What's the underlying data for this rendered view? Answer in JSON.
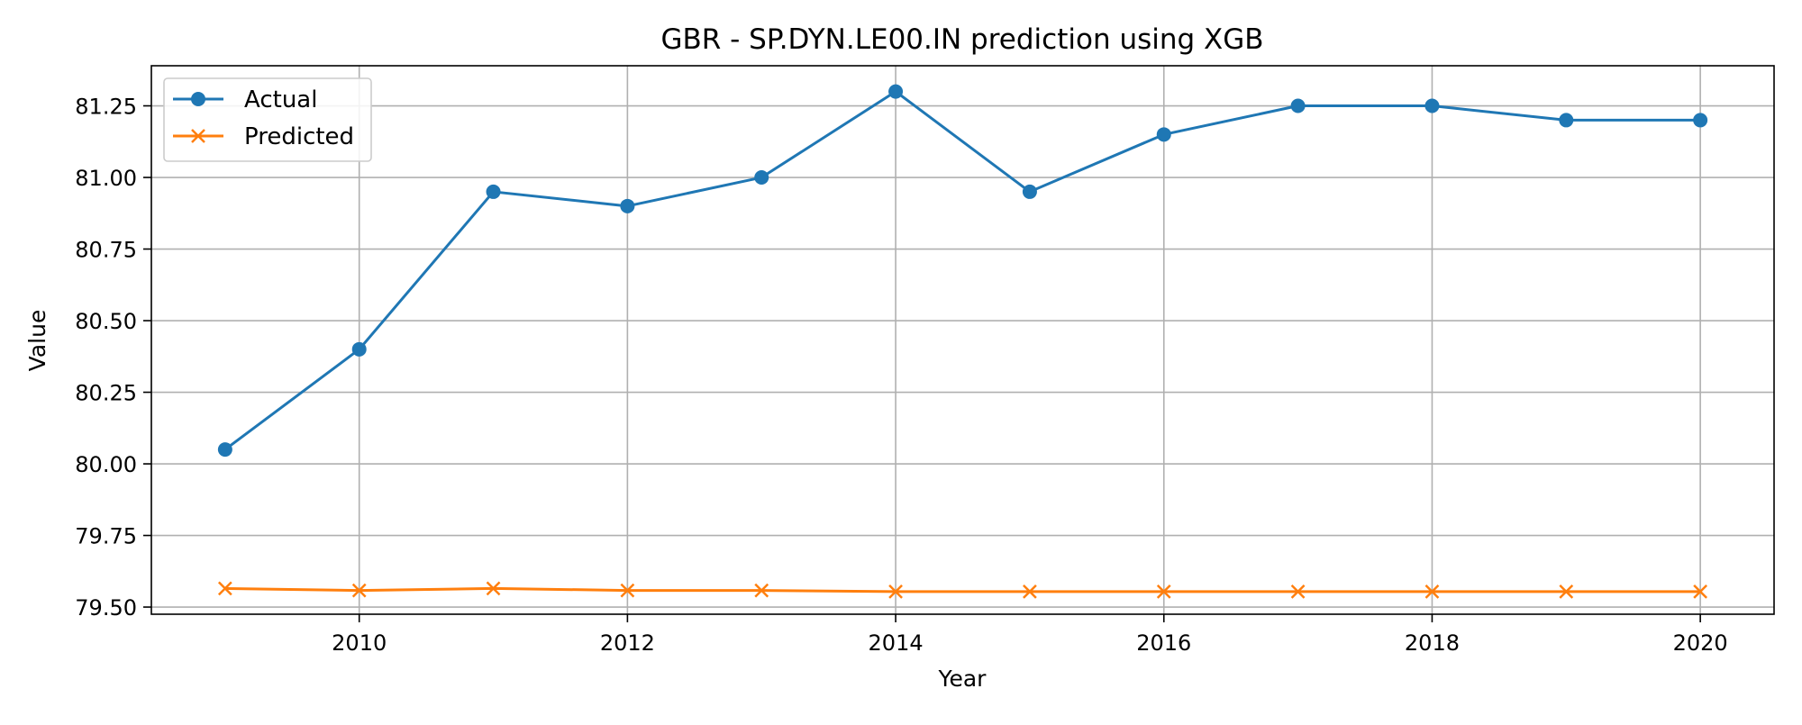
{
  "chart_data": {
    "type": "line",
    "title": "GBR - SP.DYN.LE00.IN prediction using XGB",
    "xlabel": "Year",
    "ylabel": "Value",
    "x": [
      2009,
      2010,
      2011,
      2012,
      2013,
      2014,
      2015,
      2016,
      2017,
      2018,
      2019,
      2020
    ],
    "xlim": [
      2008.45,
      2020.55
    ],
    "ylim": [
      79.475,
      81.39
    ],
    "xticks": [
      2010,
      2012,
      2014,
      2016,
      2018,
      2020
    ],
    "yticks": [
      79.5,
      79.75,
      80.0,
      80.25,
      80.5,
      80.75,
      81.0,
      81.25
    ],
    "ytick_labels": [
      "79.50",
      "79.75",
      "80.00",
      "80.25",
      "80.50",
      "80.75",
      "81.00",
      "81.25"
    ],
    "grid": true,
    "legend_position": "upper-left",
    "series": [
      {
        "name": "Actual",
        "color": "#1f77b4",
        "marker": "circle",
        "values": [
          80.05,
          80.4,
          80.95,
          80.9,
          81.0,
          81.3,
          80.95,
          81.15,
          81.25,
          81.25,
          81.2,
          81.2
        ]
      },
      {
        "name": "Predicted",
        "color": "#ff7f0e",
        "marker": "x",
        "values": [
          79.565,
          79.558,
          79.565,
          79.558,
          79.558,
          79.554,
          79.554,
          79.554,
          79.554,
          79.554,
          79.554,
          79.554
        ]
      }
    ]
  }
}
